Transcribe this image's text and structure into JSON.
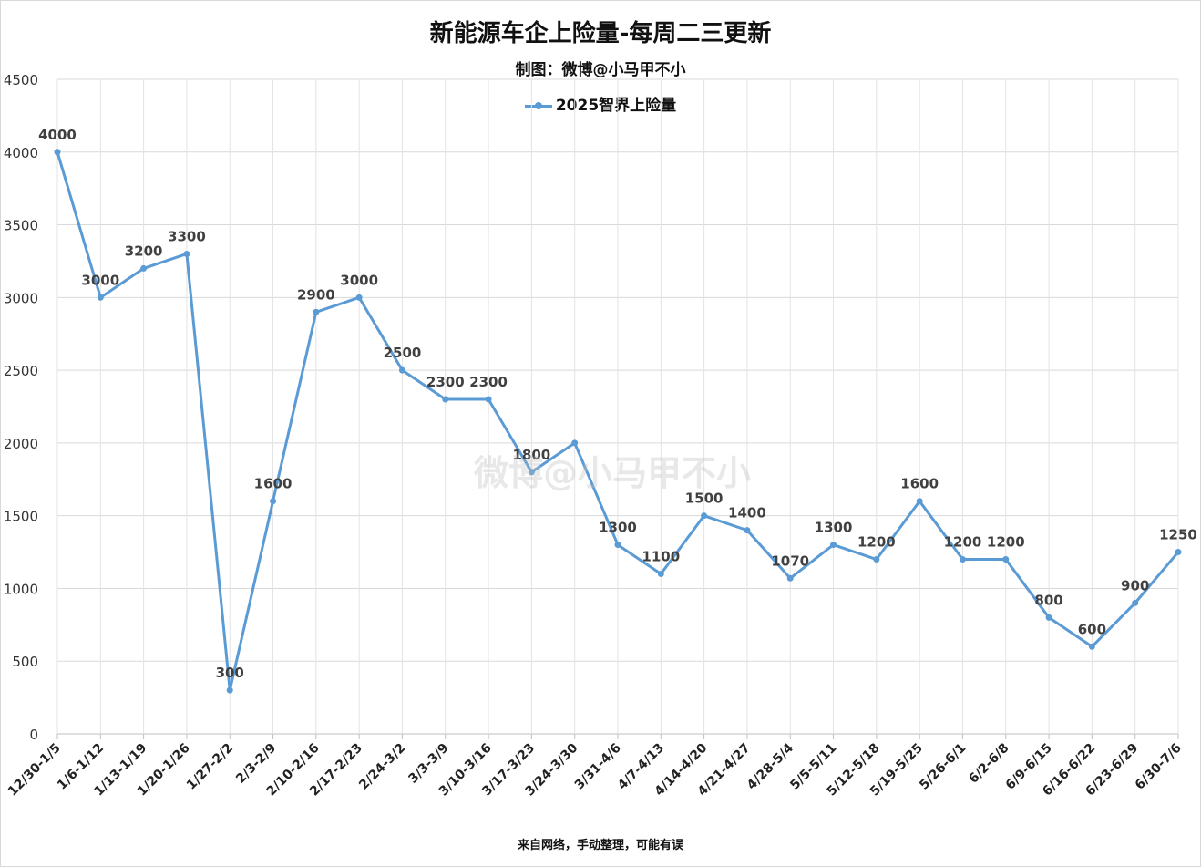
{
  "chart_data": {
    "type": "line",
    "title": "新能源车企上险量-每周二三更新",
    "subtitle": "制图：微博@小马甲不小",
    "footer": "来自网络，手动整理，可能有误",
    "watermark": "微博@小马甲不小",
    "categories": [
      "12/30-1/5",
      "1/6-1/12",
      "1/13-1/19",
      "1/20-1/26",
      "1/27-2/2",
      "2/3-2/9",
      "2/10-2/16",
      "2/17-2/23",
      "2/24-3/2",
      "3/3-3/9",
      "3/10-3/16",
      "3/17-3/23",
      "3/24-3/30",
      "3/31-4/6",
      "4/7-4/13",
      "4/14-4/20",
      "4/21-4/27",
      "4/28-5/4",
      "5/5-5/11",
      "5/12-5/18",
      "5/19-5/25",
      "5/26-6/1",
      "6/2-6/8",
      "6/9-6/15",
      "6/16-6/22",
      "6/23-6/29",
      "6/30-7/6"
    ],
    "series": [
      {
        "name": "2025智界上险量",
        "color": "#5b9bd5",
        "values": [
          4000,
          3000,
          3200,
          3300,
          300,
          1600,
          2900,
          3000,
          2500,
          2300,
          2300,
          1800,
          2000,
          1300,
          1100,
          1500,
          1400,
          1070,
          1300,
          1200,
          1600,
          1200,
          1200,
          800,
          600,
          900,
          1250
        ],
        "labels": [
          "4000",
          "3000",
          "3200",
          "3300",
          "300",
          "1600",
          "2900",
          "3000",
          "2500",
          "2300",
          "2300",
          "1800",
          "",
          "1300",
          "1100",
          "1500",
          "1400",
          "1070",
          "1300",
          "1200",
          "1600",
          "1200",
          "1200",
          "800",
          "600",
          "900",
          "1250"
        ]
      }
    ],
    "ylim": [
      0,
      4500
    ],
    "yticks": [
      0,
      500,
      1000,
      1500,
      2000,
      2500,
      3000,
      3500,
      4000,
      4500
    ],
    "xlabel": "",
    "ylabel": "",
    "grid": true,
    "legend_position": "top-center"
  }
}
